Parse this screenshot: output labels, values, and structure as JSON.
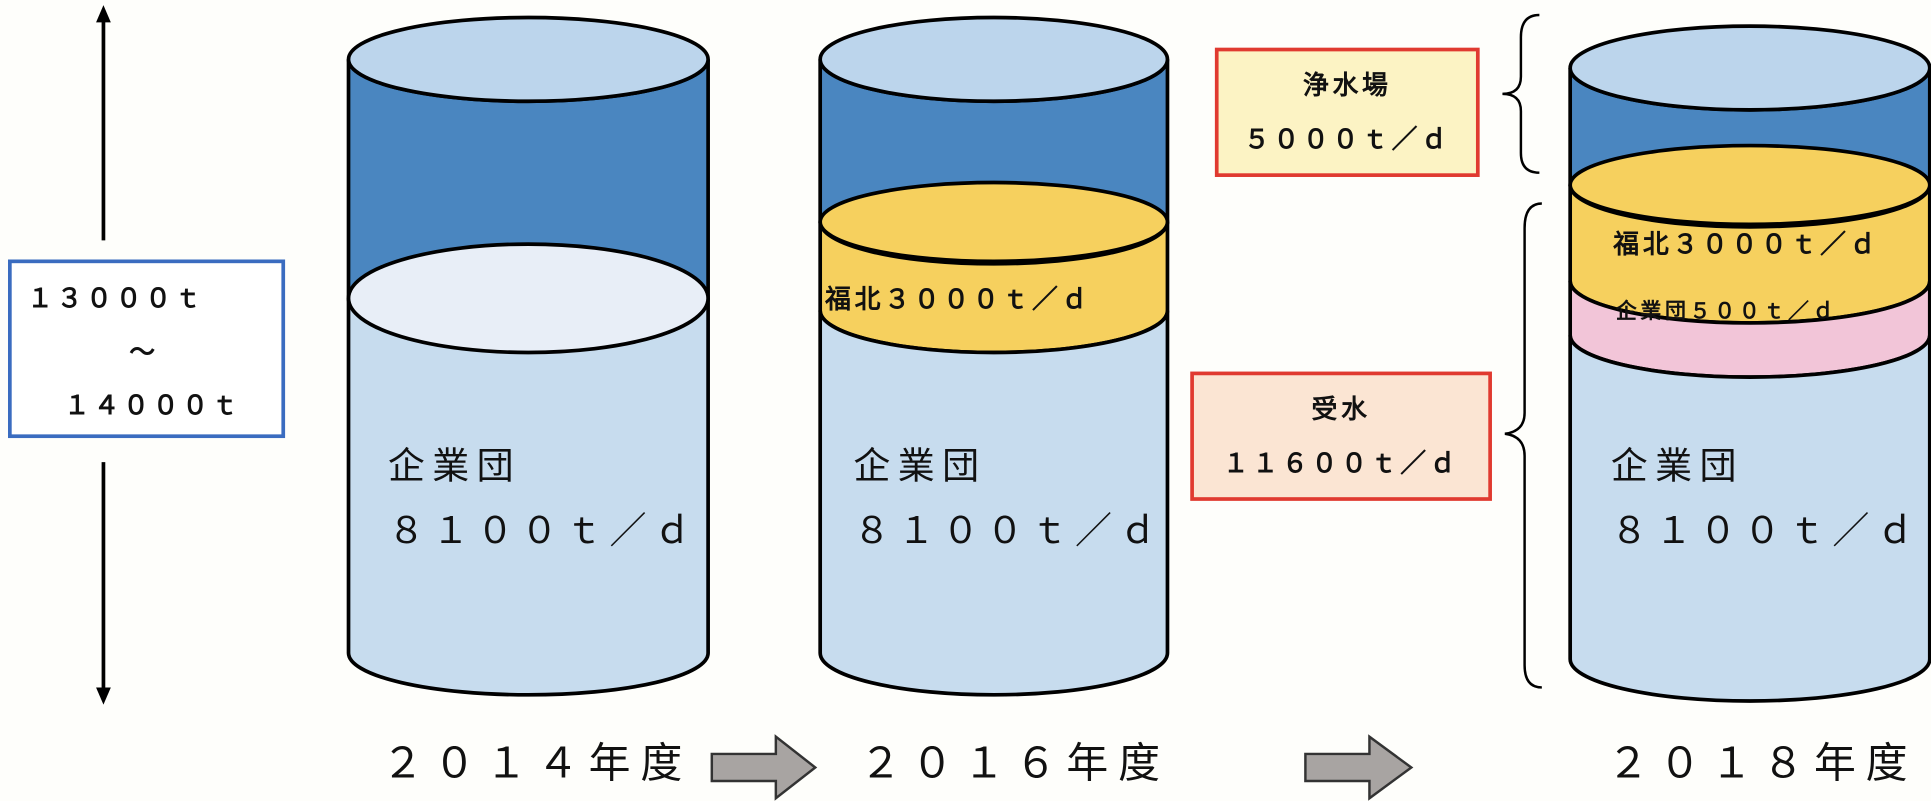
{
  "range": {
    "min": "１３０００ｔ",
    "separator": "～",
    "max": "１４０００ｔ"
  },
  "callouts": [
    {
      "label": "浄水場",
      "value": "５０００ｔ／ｄ"
    },
    {
      "label": "受水",
      "value": "１１６００ｔ／ｄ"
    }
  ],
  "tanks": [
    {
      "year": "２０１４年度",
      "base": {
        "label": "企業団",
        "value": "８１００ｔ／ｄ"
      }
    },
    {
      "year": "２０１６年度",
      "base": {
        "label": "企業団",
        "value": "８１００ｔ／ｄ"
      },
      "layers": [
        "福北３０００ｔ／ｄ"
      ]
    },
    {
      "year": "２０１８年度",
      "base": {
        "label": "企業団",
        "value": "８１００ｔ／ｄ"
      },
      "layers": [
        "福北３０００ｔ／ｄ",
        "企業団５００ｔ／ｄ"
      ]
    }
  ]
}
